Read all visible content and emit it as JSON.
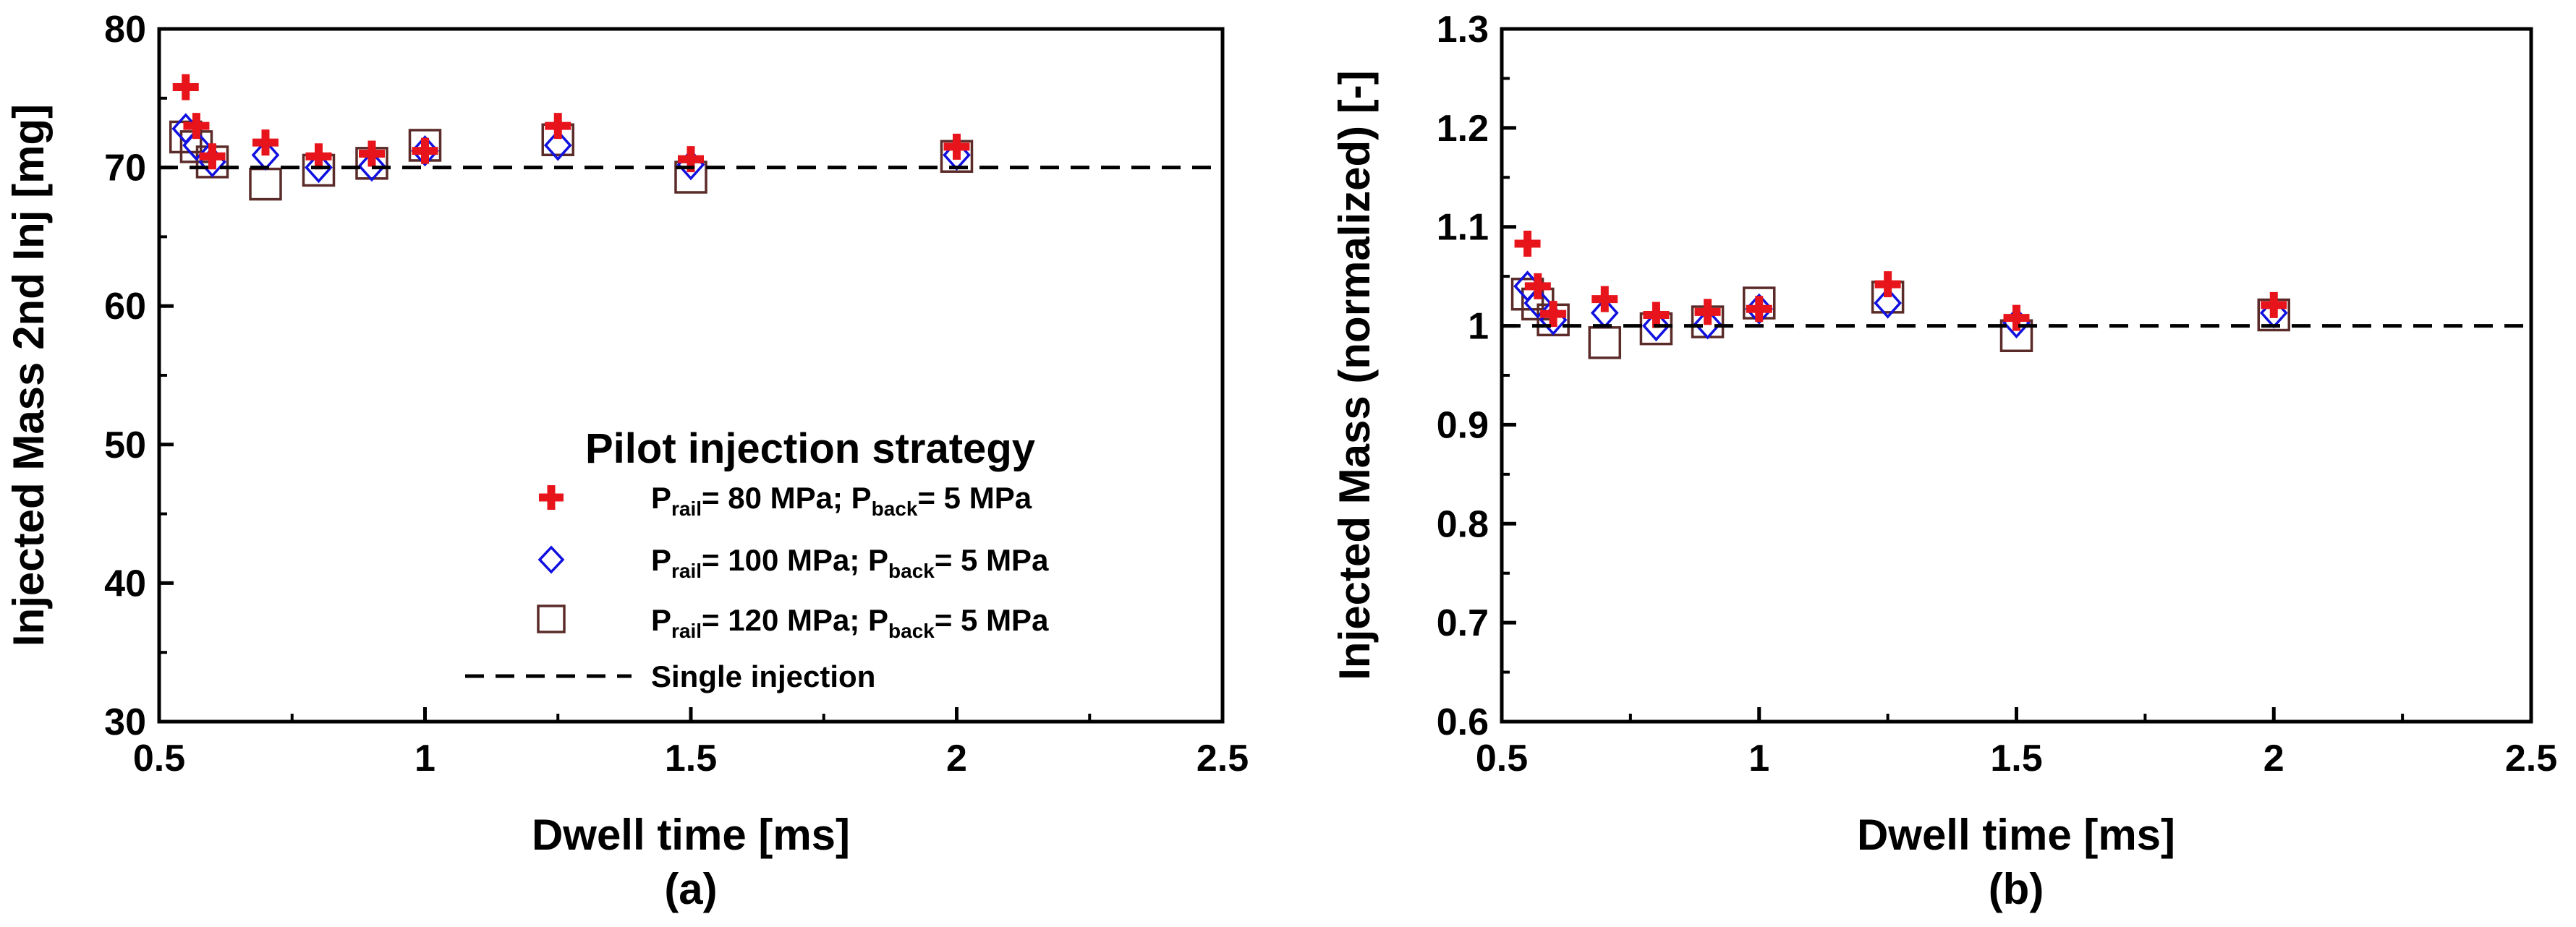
{
  "chart_data": [
    {
      "type": "scatter",
      "panel": "(a)",
      "xlabel": "Dwell time [ms]",
      "ylabel": "Injected Mass 2nd Inj [mg]",
      "xlim": [
        0.5,
        2.5
      ],
      "ylim": [
        30,
        80
      ],
      "xticks": [
        0.5,
        1,
        1.5,
        2,
        2.5
      ],
      "xtick_labels": [
        "0.5",
        "1",
        "1.5",
        "2",
        "2.5"
      ],
      "yticks": [
        30,
        40,
        50,
        60,
        70,
        80
      ],
      "ytick_labels": [
        "30",
        "40",
        "50",
        "60",
        "70",
        "80"
      ],
      "grid": false,
      "legend": {
        "title": "Pilot injection strategy",
        "placement": "lower-right"
      },
      "reference_line": {
        "name": "Single injection",
        "y": 70,
        "style": "dashed"
      },
      "series": [
        {
          "name": "Prail= 80 MPa; Pback= 5 MPa",
          "parts": [
            {
              "t": "P",
              "s": false
            },
            {
              "t": "rail",
              "s": true
            },
            {
              "t": "= 80 MPa; P",
              "s": false
            },
            {
              "t": "back",
              "s": true
            },
            {
              "t": "= 5 MPa",
              "s": false
            }
          ],
          "marker": "plus",
          "color": "#e8141b",
          "x": [
            0.55,
            0.57,
            0.6,
            0.7,
            0.8,
            0.9,
            1.0,
            1.25,
            1.5,
            2.0
          ],
          "y": [
            75.8,
            73.0,
            70.8,
            71.8,
            70.8,
            71.0,
            71.2,
            73.0,
            70.6,
            71.5
          ]
        },
        {
          "name": "Prail= 100 MPa; Pback= 5 MPa",
          "parts": [
            {
              "t": "P",
              "s": false
            },
            {
              "t": "rail",
              "s": true
            },
            {
              "t": "= 100 MPa; P",
              "s": false
            },
            {
              "t": "back",
              "s": true
            },
            {
              "t": "= 5 MPa",
              "s": false
            }
          ],
          "marker": "diamond",
          "color": "#1010e0",
          "x": [
            0.55,
            0.57,
            0.6,
            0.7,
            0.8,
            0.9,
            1.0,
            1.25,
            1.5,
            2.0
          ],
          "y": [
            72.8,
            71.6,
            70.4,
            70.9,
            70.0,
            70.1,
            71.2,
            71.6,
            70.2,
            70.9
          ]
        },
        {
          "name": "Prail= 120 MPa; Pback= 5 MPa",
          "parts": [
            {
              "t": "P",
              "s": false
            },
            {
              "t": "rail",
              "s": true
            },
            {
              "t": "= 120 MPa; P",
              "s": false
            },
            {
              "t": "back",
              "s": true
            },
            {
              "t": "= 5 MPa",
              "s": false
            }
          ],
          "marker": "square",
          "color": "#5a2b28",
          "x": [
            0.55,
            0.57,
            0.6,
            0.7,
            0.8,
            0.9,
            1.0,
            1.25,
            1.5,
            2.0
          ],
          "y": [
            72.2,
            71.5,
            70.4,
            68.8,
            69.8,
            70.3,
            71.6,
            72.0,
            69.3,
            70.8
          ]
        }
      ]
    },
    {
      "type": "scatter",
      "panel": "(b)",
      "xlabel": "Dwell time [ms]",
      "ylabel": "Injected Mass (normalized) [-]",
      "xlim": [
        0.5,
        2.5
      ],
      "ylim": [
        0.6,
        1.3
      ],
      "xticks": [
        0.5,
        1,
        1.5,
        2,
        2.5
      ],
      "xtick_labels": [
        "0.5",
        "1",
        "1.5",
        "2",
        "2.5"
      ],
      "yticks": [
        0.6,
        0.7,
        0.8,
        0.9,
        1.0,
        1.1,
        1.2,
        1.3
      ],
      "ytick_labels": [
        "0.6",
        "0.7",
        "0.8",
        "0.9",
        "1",
        "1.1",
        "1.2",
        "1.3"
      ],
      "grid": false,
      "reference_line": {
        "name": "Single injection",
        "y": 1.0,
        "style": "dashed"
      },
      "series": [
        {
          "name": "Prail= 80 MPa; Pback= 5 MPa",
          "marker": "plus",
          "color": "#e8141b",
          "x": [
            0.55,
            0.57,
            0.6,
            0.7,
            0.8,
            0.9,
            1.0,
            1.25,
            1.5,
            2.0
          ],
          "y": [
            1.083,
            1.04,
            1.012,
            1.027,
            1.011,
            1.014,
            1.017,
            1.042,
            1.008,
            1.021
          ]
        },
        {
          "name": "Prail= 100 MPa; Pback= 5 MPa",
          "marker": "diamond",
          "color": "#1010e0",
          "x": [
            0.55,
            0.57,
            0.6,
            0.7,
            0.8,
            0.9,
            1.0,
            1.25,
            1.5,
            2.0
          ],
          "y": [
            1.04,
            1.023,
            1.006,
            1.013,
            1.0,
            1.002,
            1.017,
            1.023,
            1.003,
            1.013
          ]
        },
        {
          "name": "Prail= 120 MPa; Pback= 5 MPa",
          "marker": "square",
          "color": "#5a2b28",
          "x": [
            0.55,
            0.57,
            0.6,
            0.7,
            0.8,
            0.9,
            1.0,
            1.25,
            1.5,
            2.0
          ],
          "y": [
            1.032,
            1.022,
            1.006,
            0.983,
            0.997,
            1.004,
            1.023,
            1.029,
            0.99,
            1.011
          ]
        }
      ]
    }
  ]
}
